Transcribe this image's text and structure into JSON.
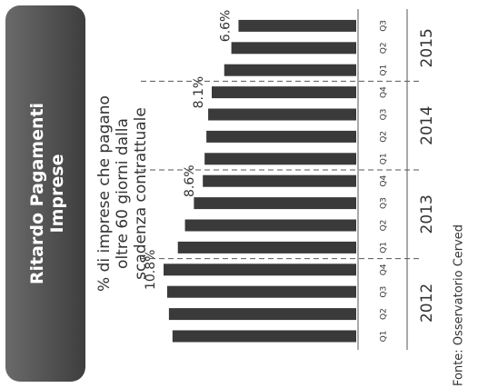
{
  "chart_data": {
    "type": "bar",
    "title": "Ritardo Pagamenti Imprese",
    "subtitle": "% di imprese che pagano oltre 60 giorni dalla scadenza contrattuale",
    "source": "Fonte: Osservatorio Cerved",
    "color": "#3a3a3a",
    "groups": [
      {
        "label": "2012",
        "categories": [
          "Q1",
          "Q2",
          "Q3",
          "Q4"
        ],
        "values": [
          10.3,
          10.5,
          10.6,
          10.8
        ],
        "value_labels": [
          null,
          null,
          null,
          "10.8%"
        ]
      },
      {
        "label": "2013",
        "categories": [
          "Q1",
          "Q2",
          "Q3",
          "Q4"
        ],
        "values": [
          10.0,
          9.6,
          9.1,
          8.6
        ],
        "value_labels": [
          null,
          null,
          null,
          "8.6%"
        ]
      },
      {
        "label": "2014",
        "categories": [
          "Q1",
          "Q2",
          "Q3",
          "Q4"
        ],
        "values": [
          8.5,
          8.4,
          8.3,
          8.1
        ],
        "value_labels": [
          null,
          null,
          null,
          "8.1%"
        ]
      },
      {
        "label": "2015",
        "categories": [
          "Q1",
          "Q2",
          "Q3"
        ],
        "values": [
          7.4,
          7.0,
          6.6
        ],
        "value_labels": [
          null,
          null,
          "6.6%"
        ]
      }
    ]
  }
}
